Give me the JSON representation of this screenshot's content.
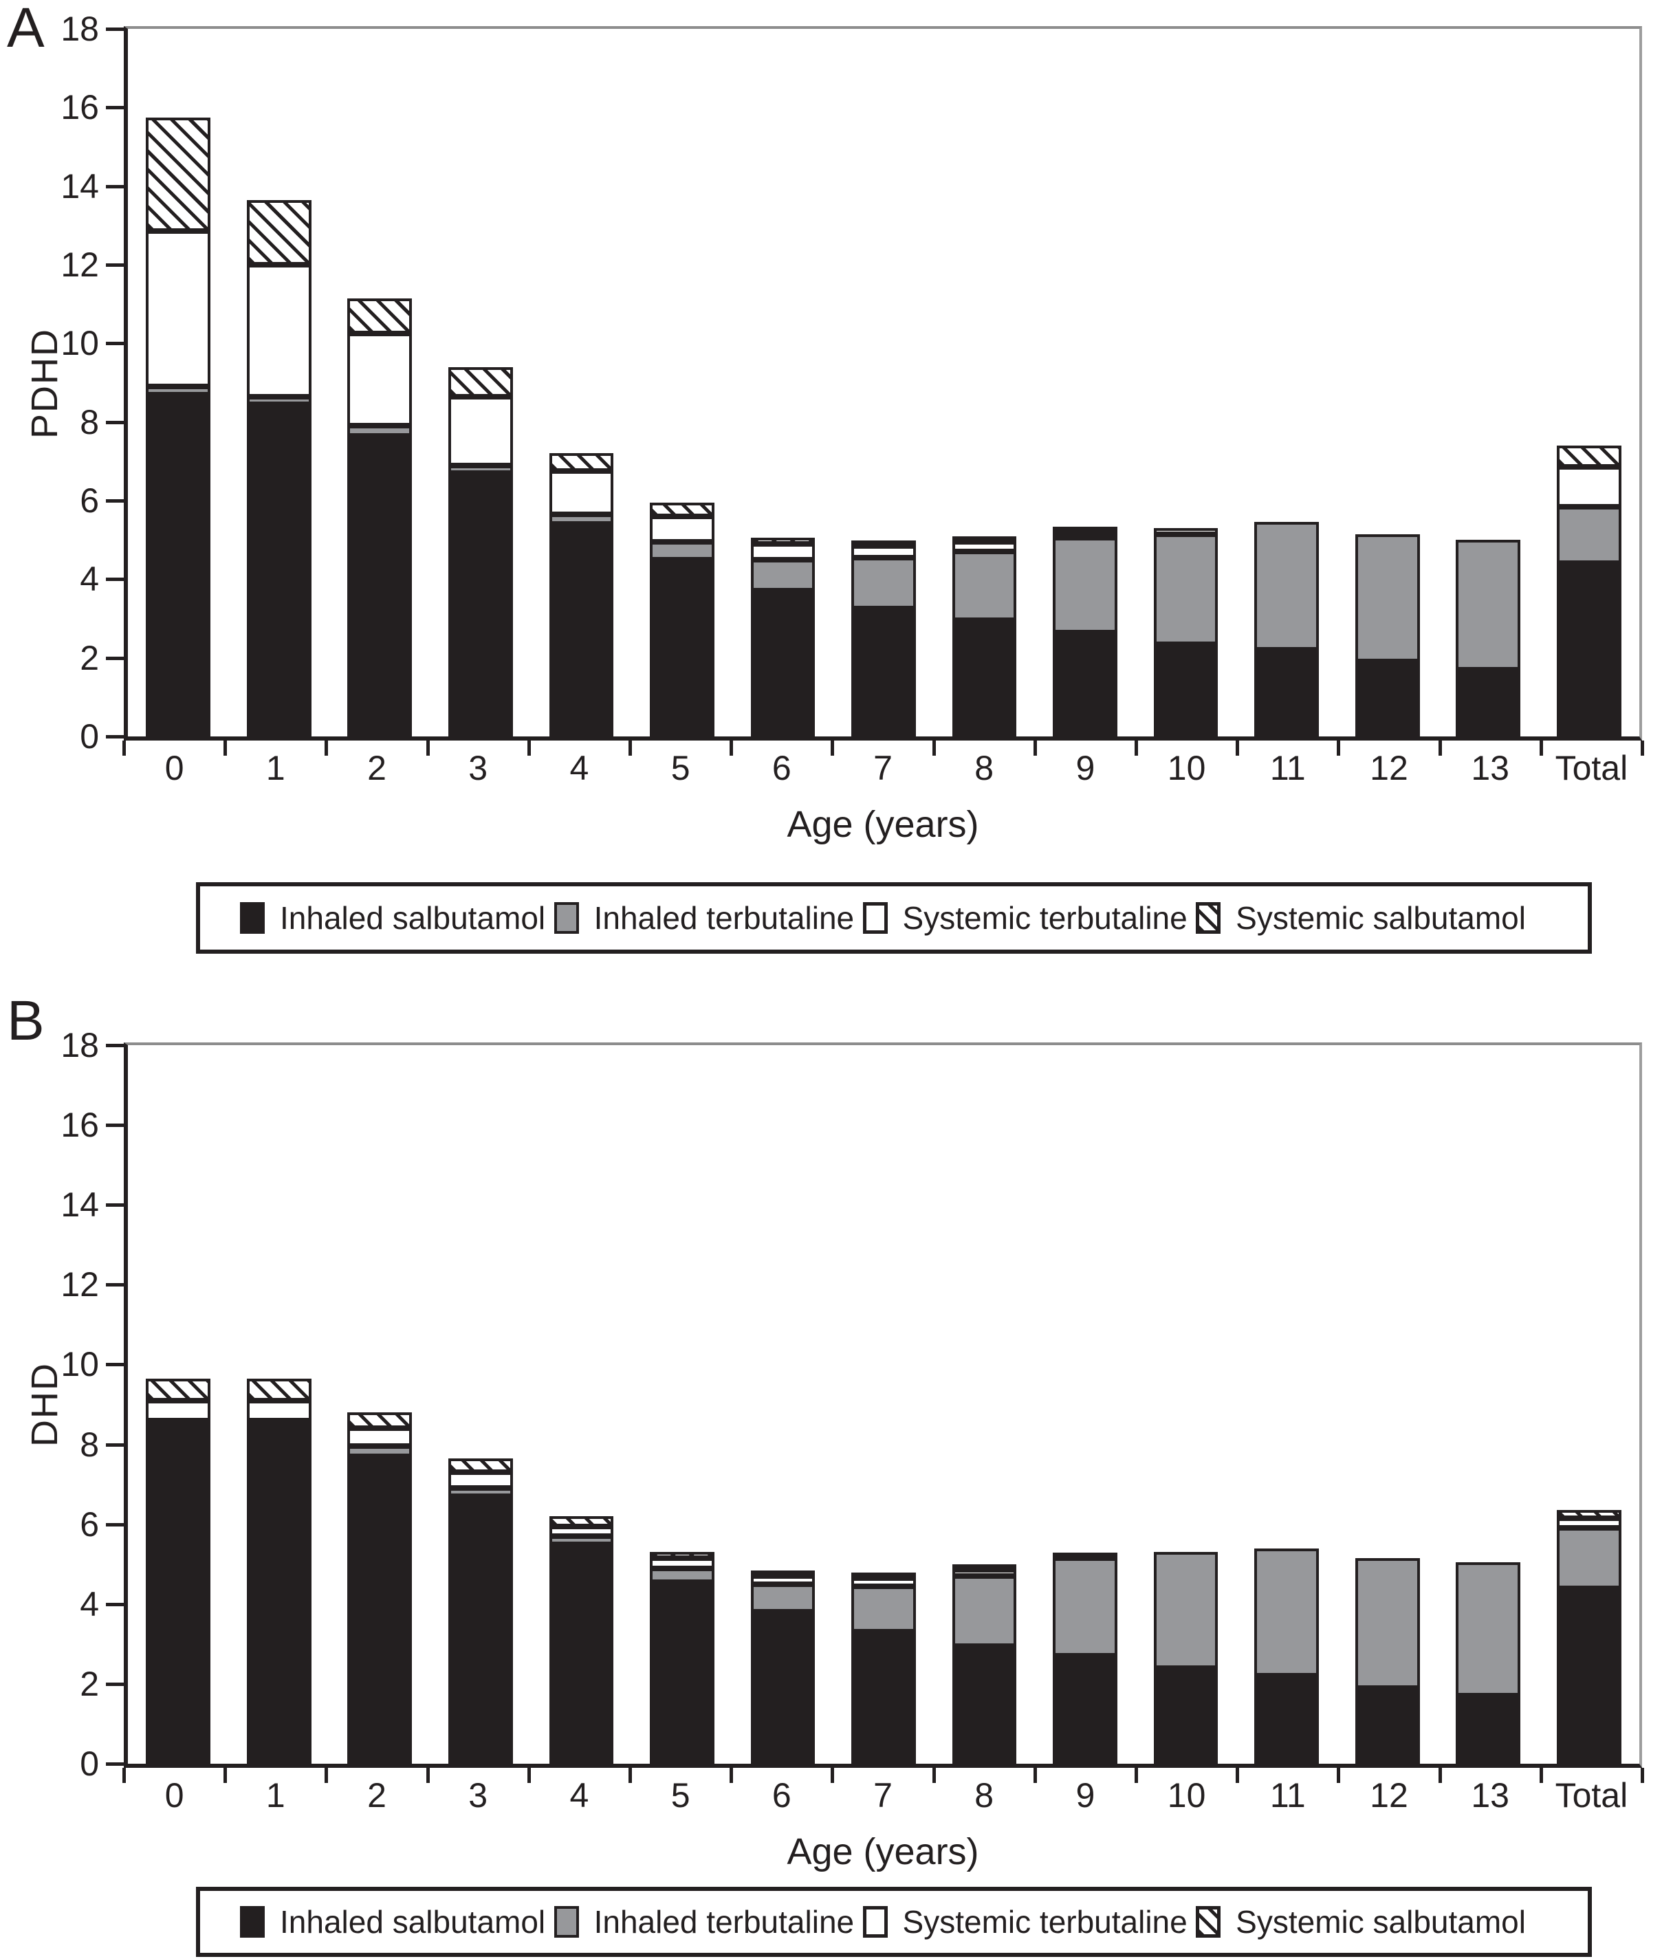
{
  "styles": {
    "series_colors": {
      "Inhaled salbutamol": "#231f20",
      "Inhaled terbutaline": "#97989b",
      "Systemic terbutaline": "#ffffff",
      "Systemic salbutamol": "diagonal-hatch-black-on-white"
    },
    "axis_color": "#231f20",
    "frame_top_right_color": "#8d8d8d",
    "background": "#ffffff"
  },
  "chart_data": [
    {
      "type": "bar",
      "stacked": true,
      "title": "A",
      "ylabel": "PDHD",
      "xlabel": "Age (years)",
      "ylim": [
        0,
        18
      ],
      "yticks": [
        0,
        2,
        4,
        6,
        8,
        10,
        12,
        14,
        16,
        18
      ],
      "grid": false,
      "legend_position": "bottom",
      "categories": [
        "0",
        "1",
        "2",
        "3",
        "4",
        "5",
        "6",
        "7",
        "8",
        "9",
        "10",
        "11",
        "12",
        "13",
        "Total"
      ],
      "series": [
        {
          "name": "Inhaled salbutamol",
          "values": [
            8.7,
            8.45,
            7.65,
            6.7,
            5.4,
            4.5,
            3.7,
            3.25,
            2.95,
            2.65,
            2.35,
            2.2,
            1.9,
            1.7,
            4.4
          ]
        },
        {
          "name": "Inhaled terbutaline",
          "values": [
            0.2,
            0.2,
            0.25,
            0.2,
            0.25,
            0.45,
            0.8,
            1.3,
            1.75,
            2.4,
            2.8,
            3.25,
            3.25,
            3.3,
            1.45
          ]
        },
        {
          "name": "Systemic terbutaline",
          "values": [
            3.95,
            3.35,
            2.35,
            1.75,
            1.1,
            0.65,
            0.4,
            0.3,
            0.25,
            0.15,
            0.15,
            0,
            0,
            0,
            1.0
          ]
        },
        {
          "name": "Systemic salbutamol",
          "values": [
            2.9,
            1.65,
            0.9,
            0.75,
            0.45,
            0.35,
            0.15,
            0.1,
            0.05,
            0.05,
            0,
            0,
            0,
            0,
            0.55
          ]
        }
      ]
    },
    {
      "type": "bar",
      "stacked": true,
      "title": "B",
      "ylabel": "DHD",
      "xlabel": "Age (years)",
      "ylim": [
        0,
        18
      ],
      "yticks": [
        0,
        2,
        4,
        6,
        8,
        10,
        12,
        14,
        16,
        18
      ],
      "grid": false,
      "legend_position": "bottom",
      "categories": [
        "0",
        "1",
        "2",
        "3",
        "4",
        "5",
        "6",
        "7",
        "8",
        "9",
        "10",
        "11",
        "12",
        "13",
        "Total"
      ],
      "series": [
        {
          "name": "Inhaled salbutamol",
          "values": [
            8.45,
            8.45,
            7.7,
            6.7,
            5.5,
            4.55,
            3.8,
            3.3,
            2.95,
            2.7,
            2.4,
            2.2,
            1.9,
            1.7,
            4.4
          ]
        },
        {
          "name": "Inhaled terbutaline",
          "values": [
            0.15,
            0.15,
            0.25,
            0.2,
            0.2,
            0.35,
            0.7,
            1.15,
            1.75,
            2.45,
            2.9,
            3.2,
            3.25,
            3.35,
            1.5
          ]
        },
        {
          "name": "Systemic terbutaline",
          "values": [
            0.5,
            0.5,
            0.45,
            0.4,
            0.25,
            0.25,
            0.2,
            0.2,
            0.15,
            0.05,
            0,
            0,
            0,
            0,
            0.25
          ]
        },
        {
          "name": "Systemic salbutamol",
          "values": [
            0.55,
            0.55,
            0.4,
            0.35,
            0.25,
            0.15,
            0.1,
            0.05,
            0.05,
            0,
            0,
            0,
            0,
            0,
            0.2
          ]
        }
      ]
    }
  ]
}
